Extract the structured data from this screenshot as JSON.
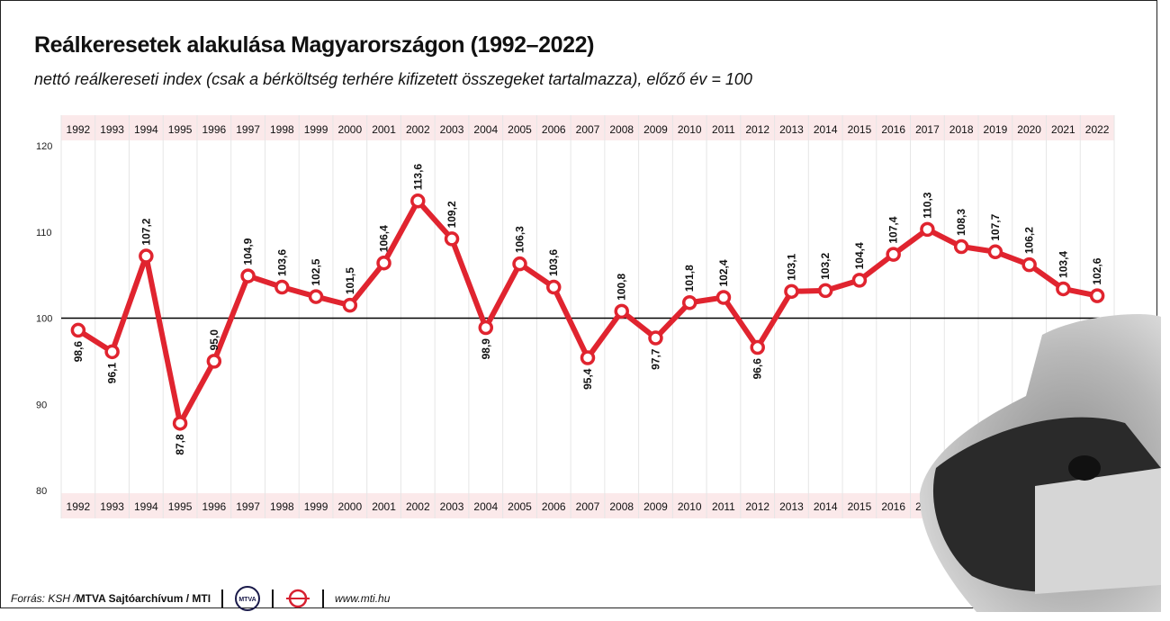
{
  "header": {
    "title": "Reálkeresetek alakulása Magyarországon (1992–2022)",
    "subtitle": "nettó reálkereseti index (csak a bérköltség terhére kifizetett összegeket tartalmazza), előző év = 100"
  },
  "footer": {
    "source_prefix": "Forrás: KSH / ",
    "source_strong": "MTVA Sajtóarchívum / MTI",
    "mtva_logo_text": "MTVA",
    "website": "www.mti.hu"
  },
  "colors": {
    "line": "#e0242f",
    "band": "#fbe9ea",
    "baseline": "#000000",
    "grid": "#e6e6e6"
  },
  "chart_data": {
    "type": "line",
    "title": "Reálkeresetek alakulása Magyarországon (1992–2022)",
    "subtitle": "nettó reálkereseti index (csak a bérköltség terhére kifizetett összegeket tartalmazza), előző év = 100",
    "x": [
      "1992",
      "1993",
      "1994",
      "1995",
      "1996",
      "1997",
      "1998",
      "1999",
      "2000",
      "2001",
      "2002",
      "2003",
      "2004",
      "2005",
      "2006",
      "2007",
      "2008",
      "2009",
      "2010",
      "2011",
      "2012",
      "2013",
      "2014",
      "2015",
      "2016",
      "2017",
      "2018",
      "2019",
      "2020",
      "2021",
      "2022"
    ],
    "series": [
      {
        "values": [
          98.6,
          96.1,
          107.2,
          87.8,
          95.0,
          104.9,
          103.6,
          102.5,
          101.5,
          106.4,
          113.6,
          109.2,
          98.9,
          106.3,
          103.6,
          95.4,
          100.8,
          97.7,
          101.8,
          102.4,
          96.6,
          103.1,
          103.2,
          104.4,
          107.4,
          110.3,
          108.3,
          107.7,
          106.2,
          103.4,
          102.6
        ],
        "labels": [
          "98,6",
          "96,1",
          "107,2",
          "87,8",
          "95,0",
          "104,9",
          "103,6",
          "102,5",
          "101,5",
          "106,4",
          "113,6",
          "109,2",
          "98,9",
          "106,3",
          "103,6",
          "95,4",
          "100,8",
          "97,7",
          "101,8",
          "102,4",
          "96,6",
          "103,1",
          "103,2",
          "104,4",
          "107,4",
          "110,3",
          "108,3",
          "107,7",
          "106,2",
          "103,4",
          "102,6"
        ],
        "label_position": [
          "below",
          "below",
          "above",
          "below",
          "above",
          "above",
          "above",
          "above",
          "above",
          "above",
          "above",
          "above",
          "below",
          "above",
          "above",
          "below",
          "above",
          "below",
          "above",
          "above",
          "below",
          "above",
          "above",
          "above",
          "above",
          "above",
          "above",
          "above",
          "above",
          "above",
          "above"
        ]
      }
    ],
    "yticks": [
      "120",
      "110",
      "100",
      "90",
      "80"
    ],
    "ylim": [
      80,
      120
    ],
    "reference_line": 100,
    "xlabel": "",
    "ylabel": "",
    "grid": "vertical",
    "legend": "none"
  }
}
